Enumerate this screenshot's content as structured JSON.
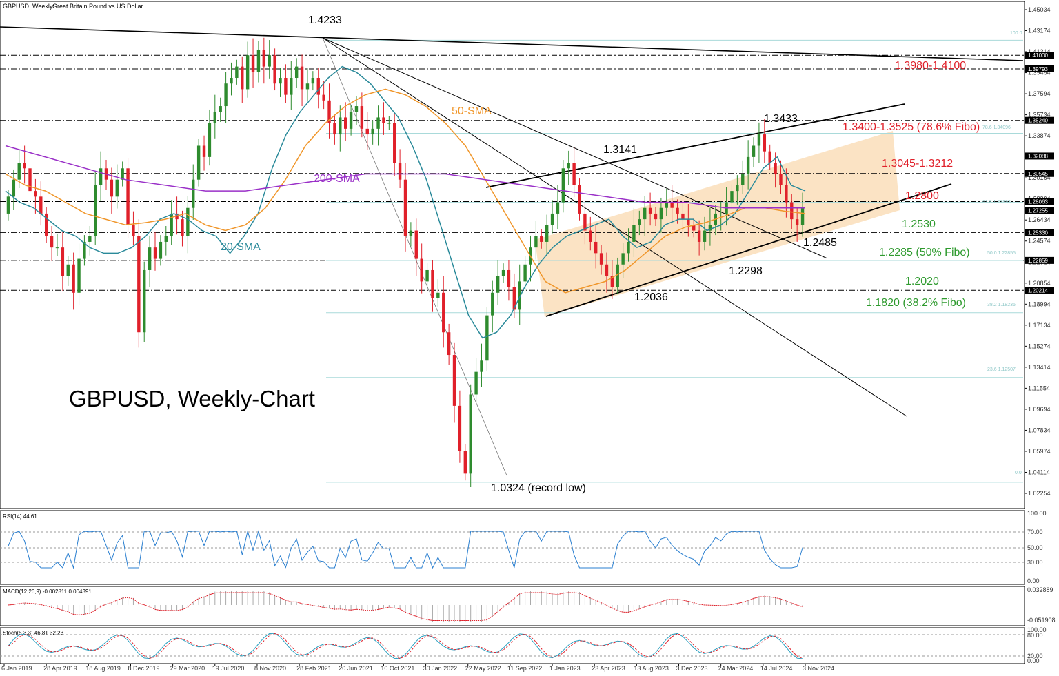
{
  "header": {
    "symbol": "GBPUSD, Weekly:",
    "description": "Great Britain Pound vs US Dollar"
  },
  "chart_title": "GBPUSD, Weekly-Chart",
  "colors": {
    "bull": "#2e8b2e",
    "bear": "#e0202a",
    "sma20": "#2a8a9a",
    "sma50": "#f0962a",
    "sma200": "#9a30c8",
    "channel": "#f9d9b0",
    "red_text": "#e0202a",
    "green_text": "#2e9a2e",
    "rsi": "#2a7fd0",
    "macd_signal": "#e0202a",
    "stoch_main": "#2aa0c0",
    "stoch_signal": "#e0202a"
  },
  "indicators": {
    "rsi_label": "RSI(14) 44.61",
    "macd_label": "MACD(12,26,9) -0.002811 0.004391",
    "stoch_label": "Stoch(5,3,3) 46.81 32.23"
  },
  "annotations": {
    "high_1": "1.4233",
    "high_2": "1.3433",
    "high_3": "1.3141",
    "low_record": "1.0324 (record low)",
    "low_1": "1.2036",
    "low_2": "1.2298",
    "low_3": "1.2485",
    "sma50": "50-SMA",
    "sma200": "200-SMA",
    "sma20": "20-SMA",
    "res_1": "1.3980-1.4100",
    "res_2": "1.3400-1.3525 (78.6% Fibo)",
    "res_3": "1.3045-1.3212",
    "res_4": "1.2800",
    "sup_1": "1.2530",
    "sup_2": "1.2285 (50% Fibo)",
    "sup_3": "1.2020",
    "sup_4": "1.1820 (38.2% Fibo)"
  },
  "fibo_labels": [
    "100.0",
    "78.6 1.34096",
    "61.8 1.27993",
    "50.0 1.22855",
    "38.2 1.18235",
    "23.6 1.12507",
    "0.0"
  ],
  "chart_data": {
    "type": "candlestick",
    "ylim": [
      1.01,
      1.45
    ],
    "y_ticks": [
      "1.45034",
      "1.43174",
      "1.41314",
      "1.39454",
      "1.37594",
      "1.35734",
      "1.33874",
      "1.32014",
      "1.30154",
      "1.28294",
      "1.26434",
      "1.24574",
      "1.22714",
      "1.20854",
      "1.18994",
      "1.17134",
      "1.15274",
      "1.13414",
      "1.11554",
      "1.09694",
      "1.07834",
      "1.05974",
      "1.04114",
      "1.02254"
    ],
    "price_tags": [
      "1.41000",
      "1.39793",
      "1.35240",
      "1.32088",
      "1.30545",
      "1.28063",
      "1.27255",
      "1.25330",
      "1.22859",
      "1.20214"
    ],
    "price_tag_values": [
      1.41,
      1.39793,
      1.3524,
      1.32088,
      1.30545,
      1.28063,
      1.27255,
      1.2533,
      1.22859,
      1.20214
    ],
    "x_labels": [
      "6 Jan 2019",
      "28 Apr 2019",
      "18 Aug 2019",
      "8 Dec 2019",
      "29 Mar 2020",
      "19 Jul 2020",
      "8 Nov 2020",
      "28 Feb 2021",
      "20 Jun 2021",
      "10 Oct 2021",
      "30 Jan 2022",
      "22 May 2022",
      "11 Sep 2022",
      "1 Jan 2023",
      "23 Apr 2023",
      "13 Aug 2023",
      "3 Dec 2023",
      "24 Mar 2024",
      "14 Jul 2024",
      "3 Nov 2024"
    ],
    "closes": [
      1.285,
      1.3,
      1.315,
      1.31,
      1.29,
      1.285,
      1.27,
      1.25,
      1.24,
      1.24,
      1.215,
      1.225,
      1.2,
      1.23,
      1.245,
      1.25,
      1.295,
      1.31,
      1.3,
      1.285,
      1.3,
      1.31,
      1.26,
      1.25,
      1.165,
      1.22,
      1.24,
      1.23,
      1.245,
      1.25,
      1.27,
      1.265,
      1.25,
      1.275,
      1.3,
      1.33,
      1.32,
      1.35,
      1.36,
      1.365,
      1.385,
      1.39,
      1.4,
      1.38,
      1.41,
      1.395,
      1.415,
      1.4,
      1.41,
      1.385,
      1.39,
      1.375,
      1.39,
      1.4,
      1.38,
      1.385,
      1.39,
      1.375,
      1.37,
      1.35,
      1.34,
      1.355,
      1.345,
      1.36,
      1.365,
      1.345,
      1.34,
      1.345,
      1.355,
      1.35,
      1.35,
      1.315,
      1.3,
      1.25,
      1.255,
      1.23,
      1.21,
      1.22,
      1.195,
      1.2,
      1.165,
      1.145,
      1.1,
      1.06,
      1.04,
      1.11,
      1.13,
      1.14,
      1.18,
      1.2,
      1.215,
      1.22,
      1.205,
      1.185,
      1.21,
      1.225,
      1.24,
      1.25,
      1.245,
      1.26,
      1.27,
      1.28,
      1.31,
      1.315,
      1.295,
      1.27,
      1.255,
      1.245,
      1.235,
      1.225,
      1.215,
      1.205,
      1.225,
      1.235,
      1.245,
      1.26,
      1.265,
      1.275,
      1.27,
      1.265,
      1.275,
      1.28,
      1.275,
      1.27,
      1.265,
      1.26,
      1.255,
      1.245,
      1.255,
      1.26,
      1.27,
      1.27,
      1.28,
      1.29,
      1.295,
      1.305,
      1.32,
      1.33,
      1.34,
      1.325,
      1.315,
      1.305,
      1.295,
      1.28,
      1.265,
      1.26,
      1.275
    ],
    "series": [
      {
        "name": "20-SMA",
        "values": [
          1.29,
          1.28,
          1.275,
          1.265,
          1.255,
          1.25,
          1.24,
          1.235,
          1.235,
          1.24,
          1.25,
          1.265,
          1.27,
          1.265,
          1.255,
          1.25,
          1.235,
          1.25,
          1.27,
          1.31,
          1.34,
          1.36,
          1.375,
          1.39,
          1.4,
          1.395,
          1.385,
          1.37,
          1.355,
          1.33,
          1.3,
          1.26,
          1.22,
          1.18,
          1.16,
          1.165,
          1.18,
          1.205,
          1.225,
          1.24,
          1.25,
          1.255,
          1.26,
          1.265,
          1.25,
          1.24,
          1.245,
          1.26,
          1.265,
          1.265,
          1.255,
          1.26,
          1.27,
          1.29,
          1.31,
          1.32,
          1.295,
          1.29
        ]
      },
      {
        "name": "50-SMA",
        "values": [
          1.305,
          1.295,
          1.29,
          1.28,
          1.27,
          1.265,
          1.26,
          1.262,
          1.265,
          1.27,
          1.26,
          1.255,
          1.26,
          1.275,
          1.3,
          1.33,
          1.35,
          1.365,
          1.375,
          1.38,
          1.375,
          1.365,
          1.35,
          1.33,
          1.3,
          1.27,
          1.24,
          1.21,
          1.2,
          1.205,
          1.21,
          1.22,
          1.235,
          1.25,
          1.258,
          1.262,
          1.268,
          1.275,
          1.275,
          1.272,
          1.27
        ]
      },
      {
        "name": "200-SMA",
        "values": [
          1.33,
          1.32,
          1.31,
          1.3,
          1.295,
          1.29,
          1.29,
          1.295,
          1.3,
          1.305,
          1.305,
          1.305,
          1.3,
          1.295,
          1.29,
          1.285,
          1.28,
          1.28,
          1.275,
          1.275,
          1.275
        ]
      }
    ],
    "rsi_levels": [
      30,
      50,
      70
    ],
    "rsi_axis": [
      "100.00",
      "70.00",
      "50.00",
      "30.00",
      "0.00"
    ],
    "macd_axis": [
      "0.032889",
      "-0.051908"
    ],
    "stoch_axis": [
      "100.00",
      "80.00",
      "20.00",
      "0.00"
    ]
  }
}
